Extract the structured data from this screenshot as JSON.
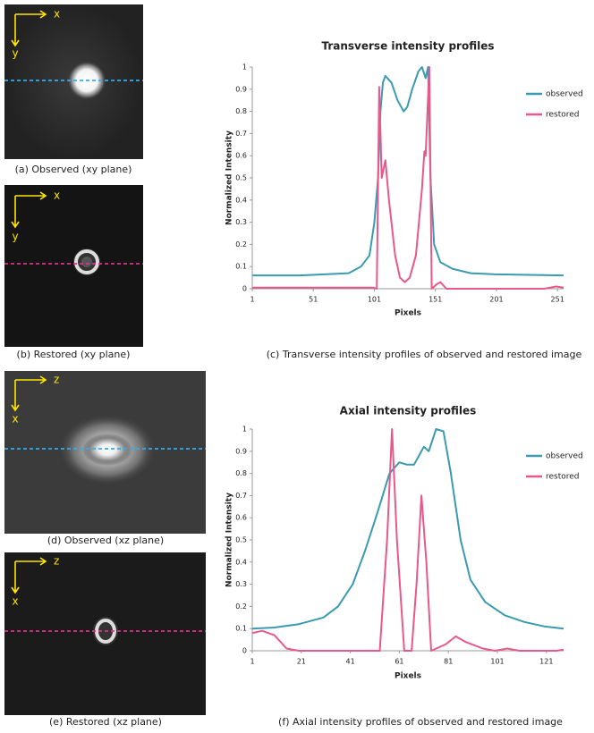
{
  "panels": [
    {
      "caption": "(a) Observed (xy plane)",
      "axis_h": "x",
      "axis_v": "y"
    },
    {
      "caption": "(b) Restored (xy plane)",
      "axis_h": "x",
      "axis_v": "y"
    },
    {
      "caption": "(d) Observed (xz plane)",
      "axis_h": "z",
      "axis_v": "x"
    },
    {
      "caption": "(e) Restored (xz plane)",
      "axis_h": "z",
      "axis_v": "x"
    }
  ],
  "chart_data": [
    {
      "type": "line",
      "title": "Transverse intensity profiles",
      "x_label": "Pixels",
      "y_label": "Normalized Intensity",
      "caption": "(c) Transverse intensity profiles of observed and restored image",
      "xlim": [
        1,
        256
      ],
      "xticks": [
        1,
        51,
        101,
        151,
        201,
        251
      ],
      "ylim": [
        0,
        1
      ],
      "yticks": [
        0,
        0.1,
        0.2,
        0.3,
        0.4,
        0.5,
        0.6,
        0.7,
        0.8,
        0.9,
        1
      ],
      "legend": "upper right",
      "series": [
        {
          "name": "observed",
          "color": "#3a9ab0",
          "x": [
            1,
            40,
            80,
            90,
            97,
            101,
            104,
            106,
            108,
            110,
            115,
            120,
            125,
            128,
            132,
            137,
            140,
            143,
            145,
            147,
            150,
            155,
            165,
            180,
            200,
            256
          ],
          "values": [
            0.06,
            0.06,
            0.07,
            0.1,
            0.15,
            0.3,
            0.5,
            0.8,
            0.93,
            0.96,
            0.93,
            0.85,
            0.8,
            0.82,
            0.9,
            0.98,
            1.0,
            0.95,
            1.0,
            0.5,
            0.2,
            0.12,
            0.09,
            0.07,
            0.065,
            0.06
          ]
        },
        {
          "name": "restored",
          "color": "#e8588a",
          "x": [
            1,
            100,
            103,
            105,
            107,
            110,
            113,
            118,
            122,
            126,
            130,
            135,
            140,
            142,
            143,
            146,
            148,
            152,
            155,
            160,
            240,
            250,
            256
          ],
          "values": [
            0.005,
            0.005,
            0,
            0.91,
            0.5,
            0.58,
            0.4,
            0.15,
            0.05,
            0.03,
            0.05,
            0.15,
            0.45,
            0.62,
            0.6,
            1.0,
            0,
            0.02,
            0.03,
            0,
            0,
            0.01,
            0.005
          ]
        }
      ]
    },
    {
      "type": "line",
      "title": "Axial intensity profiles",
      "x_label": "Pixels",
      "y_label": "Normalized Intensity",
      "caption": "(f) Axial intensity profiles of observed and restored image",
      "xlim": [
        1,
        128
      ],
      "xticks": [
        1,
        21,
        41,
        61,
        81,
        101,
        121
      ],
      "ylim": [
        0,
        1
      ],
      "yticks": [
        0,
        0.1,
        0.2,
        0.3,
        0.4,
        0.5,
        0.6,
        0.7,
        0.8,
        0.9,
        1
      ],
      "legend": "upper right",
      "series": [
        {
          "name": "observed",
          "color": "#3a9ab0",
          "x": [
            1,
            10,
            20,
            30,
            36,
            42,
            47,
            52,
            57,
            61,
            64,
            67,
            71,
            73,
            76,
            79,
            82,
            86,
            90,
            96,
            104,
            112,
            120,
            128
          ],
          "values": [
            0.1,
            0.105,
            0.12,
            0.15,
            0.2,
            0.3,
            0.45,
            0.62,
            0.8,
            0.85,
            0.84,
            0.84,
            0.92,
            0.9,
            1.0,
            0.99,
            0.8,
            0.5,
            0.32,
            0.22,
            0.16,
            0.13,
            0.11,
            0.1
          ]
        },
        {
          "name": "restored",
          "color": "#e8588a",
          "x": [
            1,
            5,
            10,
            15,
            20,
            53,
            56,
            58,
            60,
            63,
            66,
            68,
            70,
            72,
            74,
            80,
            84,
            88,
            95,
            100,
            105,
            110,
            125,
            128
          ],
          "values": [
            0.08,
            0.09,
            0.07,
            0.01,
            0,
            0,
            0.5,
            1.0,
            0.5,
            0,
            0,
            0.3,
            0.7,
            0.4,
            0,
            0.03,
            0.065,
            0.04,
            0.01,
            0,
            0.01,
            0,
            0,
            0.005
          ]
        }
      ]
    }
  ]
}
